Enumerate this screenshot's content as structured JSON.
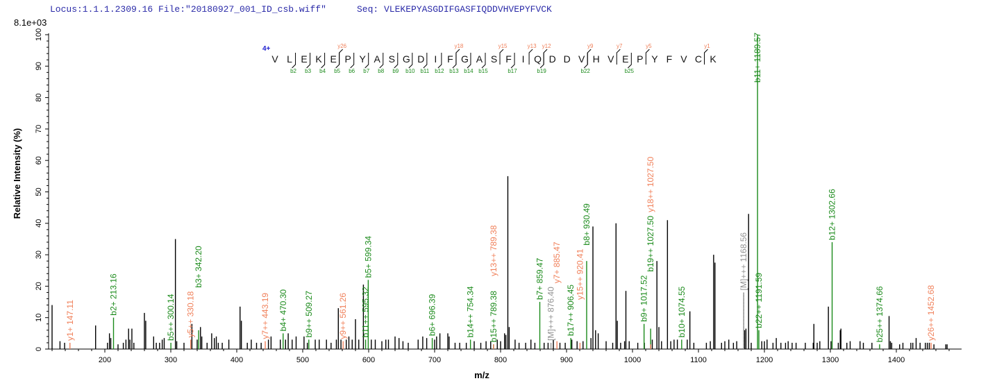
{
  "header": {
    "locus": "Locus:1.1.1.2309.16 File:\"20180927_001_ID_csb.wiff\"",
    "seq_label": "Seq: VLEKEPYASGDIFGASFIQDDVHVEPYFVCK",
    "scale": "8.1e+03"
  },
  "chart_data": {
    "type": "bar",
    "xlabel": "m/z",
    "ylabel": "Relative   Intensity (%)",
    "xlim": [
      117,
      1500
    ],
    "ylim": [
      0,
      100
    ],
    "x_ticks": [
      200,
      300,
      400,
      500,
      600,
      700,
      800,
      900,
      1000,
      1100,
      1200,
      1300,
      1400
    ],
    "y_ticks": [
      0,
      10,
      20,
      30,
      40,
      50,
      60,
      70,
      80,
      90,
      100
    ],
    "colors": {
      "b": "#1a8a1a",
      "y": "#f0805a",
      "M": "#909090",
      "unassigned": "#000000",
      "charge": "#2020d0"
    },
    "peptide": {
      "charge": "4+",
      "sequence": [
        "V",
        "L",
        "E",
        "K",
        "E",
        "P",
        "Y",
        "A",
        "S",
        "G",
        "D",
        "I",
        "F",
        "G",
        "A",
        "S",
        "F",
        "I",
        "Q",
        "D",
        "D",
        "V",
        "H",
        "V",
        "E",
        "P",
        "Y",
        "F",
        "V",
        "C",
        "K"
      ],
      "b_ions": [
        2,
        3,
        4,
        5,
        6,
        7,
        8,
        9,
        10,
        11,
        12,
        13,
        14,
        15,
        17,
        19,
        22,
        25
      ],
      "y_ions": [
        26,
        18,
        15,
        13,
        12,
        9,
        7,
        5,
        1
      ]
    },
    "annotated_peaks": [
      {
        "mz": 147.11,
        "i": 2,
        "type": "y",
        "label": "y1+ 147.11"
      },
      {
        "mz": 213.16,
        "i": 10,
        "type": "b",
        "label": "b2+ 213.16"
      },
      {
        "mz": 300.14,
        "i": 2,
        "type": "b",
        "label": "b5++ 300.14"
      },
      {
        "mz": 330.18,
        "i": 3,
        "type": "y",
        "label": "y5++ 330.18"
      },
      {
        "mz": 342.2,
        "i": 6,
        "type": "b",
        "label": "b3+ 342.20"
      },
      {
        "mz": 443.19,
        "i": 2.5,
        "type": "y",
        "label": "y7++ 443.19"
      },
      {
        "mz": 470.3,
        "i": 5,
        "type": "b",
        "label": "b4+ 470.30"
      },
      {
        "mz": 509.27,
        "i": 3,
        "type": "b",
        "label": "b9++ 509.27"
      },
      {
        "mz": 561.26,
        "i": 2.5,
        "type": "y",
        "label": "y9++ 561.26"
      },
      {
        "mz": 595.32,
        "i": 3,
        "type": "b",
        "label": "b11++ 595.32"
      },
      {
        "mz": 599.34,
        "i": 22,
        "type": "b",
        "label": "b5+ 599.34"
      },
      {
        "mz": 696.39,
        "i": 3.5,
        "type": "b",
        "label": "b6+ 696.39"
      },
      {
        "mz": 754.34,
        "i": 3,
        "type": "b",
        "label": "b14++ 754.34"
      },
      {
        "mz": 789.38,
        "i": 1.5,
        "type": "b",
        "label": "b15++ 789.38"
      },
      {
        "mz": 789.38,
        "i": 1.5,
        "type": "y",
        "label": "y13++ 789.38",
        "stack": 1
      },
      {
        "mz": 859.47,
        "i": 15,
        "type": "b",
        "label": "b7+ 859.47"
      },
      {
        "mz": 876.4,
        "i": 2,
        "type": "M",
        "label": "[M]+++ 876.40"
      },
      {
        "mz": 885.47,
        "i": 2.5,
        "type": "y",
        "label": "y7+ 885.47"
      },
      {
        "mz": 906.45,
        "i": 3.5,
        "type": "b",
        "label": "b17++ 906.45"
      },
      {
        "mz": 920.41,
        "i": 2,
        "type": "y",
        "label": "y15++ 920.41",
        "stack": 1
      },
      {
        "mz": 930.49,
        "i": 28,
        "type": "b",
        "label": "b8+ 930.49"
      },
      {
        "mz": 1017.52,
        "i": 8,
        "type": "b",
        "label": "b9+ 1017.52"
      },
      {
        "mz": 1027.5,
        "i": 6.5,
        "type": "b",
        "label": "b19++ 1027.50"
      },
      {
        "mz": 1027.5,
        "i": 1.5,
        "type": "y",
        "label": "y18++ 1027.50",
        "stack": 2
      },
      {
        "mz": 1074.55,
        "i": 3,
        "type": "b",
        "label": "b10+ 1074.55"
      },
      {
        "mz": 1168.56,
        "i": 18,
        "type": "M",
        "label": "[M]+++ 1168.56"
      },
      {
        "mz": 1189.57,
        "i": 100,
        "type": "b",
        "label": "b11+ 1189.57"
      },
      {
        "mz": 1191.59,
        "i": 6,
        "type": "b",
        "label": "b22++ 1191.59"
      },
      {
        "mz": 1302.66,
        "i": 34,
        "type": "b",
        "label": "b12+ 1302.66"
      },
      {
        "mz": 1374.66,
        "i": 1.5,
        "type": "b",
        "label": "b25++ 1374.66"
      },
      {
        "mz": 1452.68,
        "i": 2,
        "type": "y",
        "label": "y26++ 1452.68"
      }
    ],
    "unassigned_peaks": [
      [
        120,
        14
      ],
      [
        132,
        2.5
      ],
      [
        139,
        2
      ],
      [
        186,
        7.5
      ],
      [
        204,
        2
      ],
      [
        207,
        5
      ],
      [
        209,
        3.5
      ],
      [
        220,
        1.5
      ],
      [
        228,
        2
      ],
      [
        232,
        3
      ],
      [
        236,
        6.5
      ],
      [
        238,
        3
      ],
      [
        241,
        6.5
      ],
      [
        244,
        2
      ],
      [
        260,
        11.5
      ],
      [
        262,
        9
      ],
      [
        274,
        4
      ],
      [
        278,
        2
      ],
      [
        283,
        2
      ],
      [
        287,
        3
      ],
      [
        290,
        3.5
      ],
      [
        307,
        35
      ],
      [
        309,
        2.5
      ],
      [
        320,
        2
      ],
      [
        332,
        8
      ],
      [
        340,
        3
      ],
      [
        345,
        7
      ],
      [
        347,
        4
      ],
      [
        355,
        2
      ],
      [
        362,
        5
      ],
      [
        366,
        3.5
      ],
      [
        369,
        4
      ],
      [
        372,
        2
      ],
      [
        378,
        2
      ],
      [
        388,
        3
      ],
      [
        405,
        13.5
      ],
      [
        407,
        9
      ],
      [
        416,
        2
      ],
      [
        422,
        3
      ],
      [
        430,
        2
      ],
      [
        437,
        2
      ],
      [
        448,
        3
      ],
      [
        452,
        4
      ],
      [
        466,
        3
      ],
      [
        474,
        3
      ],
      [
        478,
        5
      ],
      [
        484,
        3
      ],
      [
        490,
        4
      ],
      [
        502,
        4
      ],
      [
        507,
        2
      ],
      [
        519,
        3
      ],
      [
        525,
        3
      ],
      [
        536,
        3
      ],
      [
        543,
        2
      ],
      [
        551,
        3
      ],
      [
        554,
        13
      ],
      [
        558,
        3
      ],
      [
        566,
        3
      ],
      [
        570,
        4
      ],
      [
        575,
        3
      ],
      [
        580,
        9.5
      ],
      [
        585,
        3
      ],
      [
        592,
        20.5
      ],
      [
        604,
        3
      ],
      [
        610,
        3
      ],
      [
        620,
        2.5
      ],
      [
        626,
        3
      ],
      [
        630,
        3
      ],
      [
        640,
        4
      ],
      [
        646,
        3.5
      ],
      [
        652,
        2.5
      ],
      [
        660,
        2
      ],
      [
        675,
        3
      ],
      [
        682,
        4
      ],
      [
        688,
        3.5
      ],
      [
        700,
        3
      ],
      [
        703,
        4
      ],
      [
        708,
        5
      ],
      [
        720,
        5
      ],
      [
        722,
        4
      ],
      [
        731,
        2
      ],
      [
        738,
        2
      ],
      [
        748,
        2
      ],
      [
        760,
        2.5
      ],
      [
        770,
        2
      ],
      [
        778,
        2.5
      ],
      [
        785,
        2.5
      ],
      [
        795,
        3
      ],
      [
        800,
        2.5
      ],
      [
        806,
        5
      ],
      [
        808,
        4.5
      ],
      [
        811,
        55
      ],
      [
        813,
        7
      ],
      [
        822,
        3
      ],
      [
        828,
        2
      ],
      [
        838,
        2
      ],
      [
        846,
        3
      ],
      [
        852,
        2
      ],
      [
        866,
        2
      ],
      [
        872,
        2
      ],
      [
        880,
        3
      ],
      [
        890,
        2
      ],
      [
        898,
        2
      ],
      [
        908,
        3
      ],
      [
        916,
        2.5
      ],
      [
        925,
        2.5
      ],
      [
        937,
        3.5
      ],
      [
        940,
        39
      ],
      [
        944,
        6
      ],
      [
        948,
        5
      ],
      [
        960,
        2.5
      ],
      [
        970,
        2
      ],
      [
        975,
        40
      ],
      [
        977,
        9
      ],
      [
        982,
        2
      ],
      [
        988,
        2.5
      ],
      [
        990,
        18.5
      ],
      [
        995,
        2.5
      ],
      [
        1008,
        2
      ],
      [
        1018,
        2
      ],
      [
        1030,
        3
      ],
      [
        1037,
        28
      ],
      [
        1040,
        7
      ],
      [
        1044,
        2.5
      ],
      [
        1053,
        41
      ],
      [
        1058,
        2.5
      ],
      [
        1063,
        3
      ],
      [
        1068,
        3
      ],
      [
        1083,
        3
      ],
      [
        1087,
        12
      ],
      [
        1093,
        2
      ],
      [
        1112,
        2
      ],
      [
        1118,
        2.5
      ],
      [
        1123,
        30
      ],
      [
        1125,
        27.5
      ],
      [
        1135,
        2
      ],
      [
        1140,
        2.5
      ],
      [
        1146,
        3
      ],
      [
        1153,
        2
      ],
      [
        1158,
        2.5
      ],
      [
        1170,
        6
      ],
      [
        1172,
        6.5
      ],
      [
        1176,
        43
      ],
      [
        1180,
        2
      ],
      [
        1196,
        2.5
      ],
      [
        1200,
        2.5
      ],
      [
        1204,
        3
      ],
      [
        1213,
        2
      ],
      [
        1218,
        3.5
      ],
      [
        1225,
        2
      ],
      [
        1232,
        2
      ],
      [
        1236,
        2.5
      ],
      [
        1242,
        2
      ],
      [
        1248,
        2
      ],
      [
        1262,
        2
      ],
      [
        1274,
        2
      ],
      [
        1275,
        8
      ],
      [
        1280,
        2
      ],
      [
        1284,
        2.5
      ],
      [
        1297,
        13.5
      ],
      [
        1301,
        2.5
      ],
      [
        1312,
        2
      ],
      [
        1315,
        6
      ],
      [
        1316,
        6.5
      ],
      [
        1325,
        2
      ],
      [
        1330,
        2.5
      ],
      [
        1345,
        2.5
      ],
      [
        1350,
        2
      ],
      [
        1363,
        2
      ],
      [
        1389,
        10.5
      ],
      [
        1391,
        2.5
      ],
      [
        1393,
        2
      ],
      [
        1405,
        1.5
      ],
      [
        1410,
        2
      ],
      [
        1422,
        2
      ],
      [
        1425,
        2
      ],
      [
        1430,
        3.5
      ],
      [
        1436,
        2
      ],
      [
        1444,
        2
      ],
      [
        1447,
        2
      ],
      [
        1450,
        2
      ],
      [
        1457,
        1.5
      ],
      [
        1475,
        1.5
      ],
      [
        1477,
        1.5
      ]
    ]
  }
}
